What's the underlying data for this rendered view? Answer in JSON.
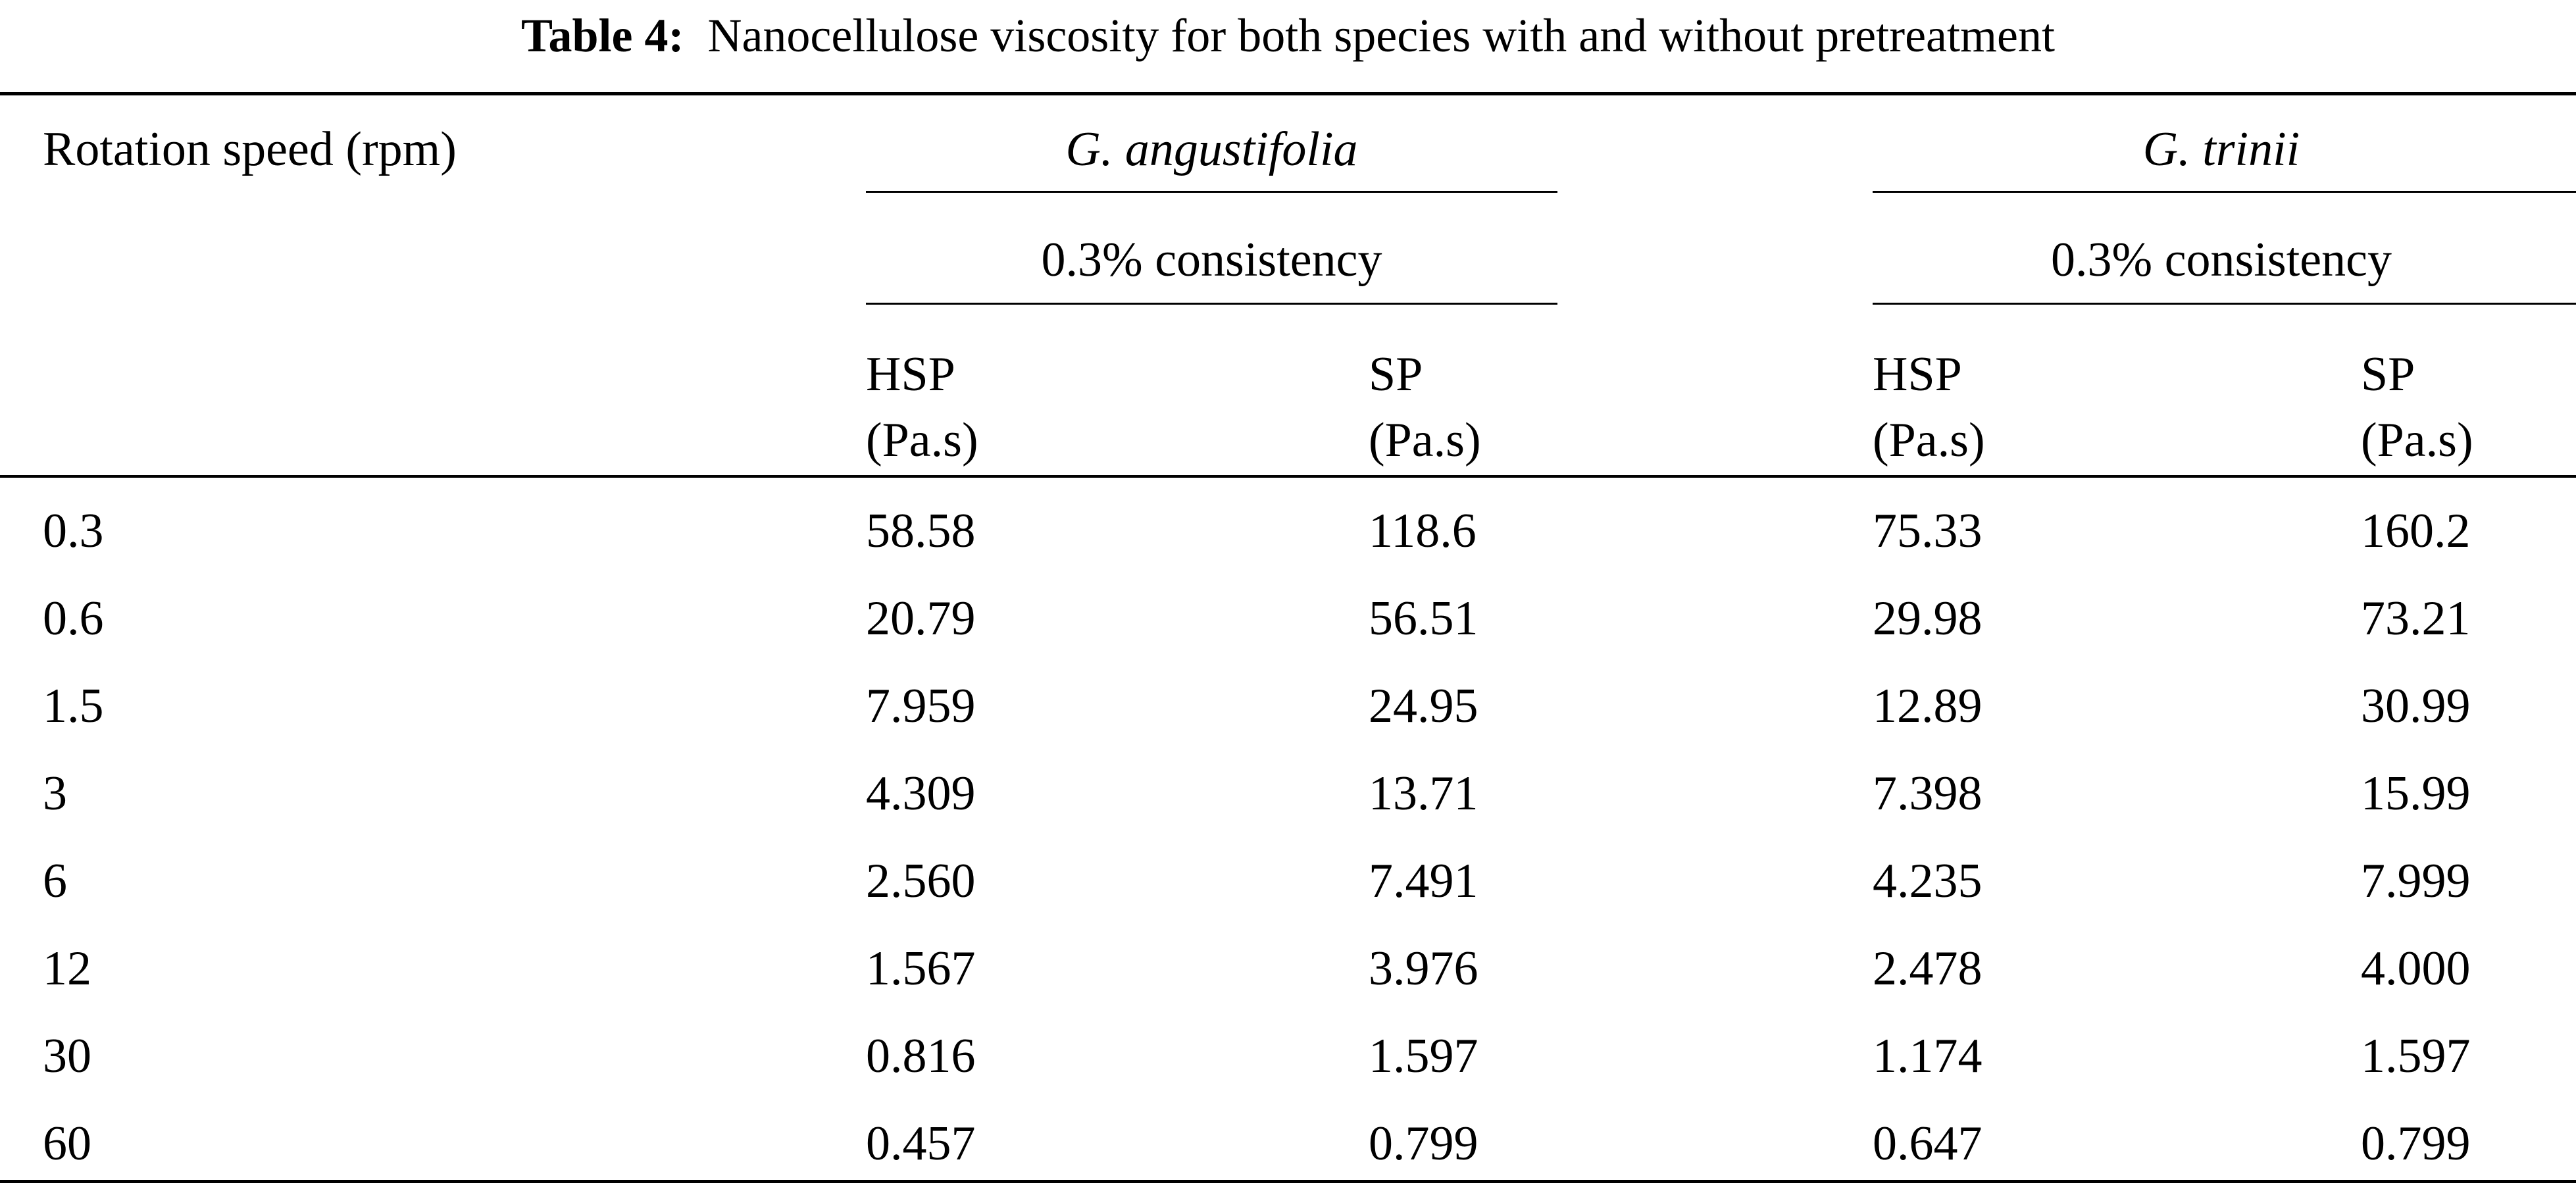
{
  "caption": {
    "label": "Table 4:",
    "text": "Nanocellulose viscosity for both species with and without pretreatment"
  },
  "header": {
    "row_label": "Rotation speed (rpm)",
    "groups": [
      {
        "species": "G. angustifolia",
        "consistency": "0.3% consistency",
        "columns": [
          {
            "name": "HSP",
            "unit": "(Pa.s)"
          },
          {
            "name": "SP",
            "unit": "(Pa.s)"
          }
        ]
      },
      {
        "species": "G. trinii",
        "consistency": "0.3% consistency",
        "columns": [
          {
            "name": "HSP",
            "unit": "(Pa.s)"
          },
          {
            "name": "SP",
            "unit": "(Pa.s)"
          }
        ]
      }
    ]
  },
  "rows": [
    [
      "0.3",
      "58.58",
      "118.6",
      "75.33",
      "160.2"
    ],
    [
      "0.6",
      "20.79",
      "56.51",
      "29.98",
      "73.21"
    ],
    [
      "1.5",
      "7.959",
      "24.95",
      "12.89",
      "30.99"
    ],
    [
      "3",
      "4.309",
      "13.71",
      "7.398",
      "15.99"
    ],
    [
      "6",
      "2.560",
      "7.491",
      "4.235",
      "7.999"
    ],
    [
      "12",
      "1.567",
      "3.976",
      "2.478",
      "4.000"
    ],
    [
      "30",
      "0.816",
      "1.597",
      "1.174",
      "1.597"
    ],
    [
      "60",
      "0.457",
      "0.799",
      "0.647",
      "0.799"
    ]
  ]
}
